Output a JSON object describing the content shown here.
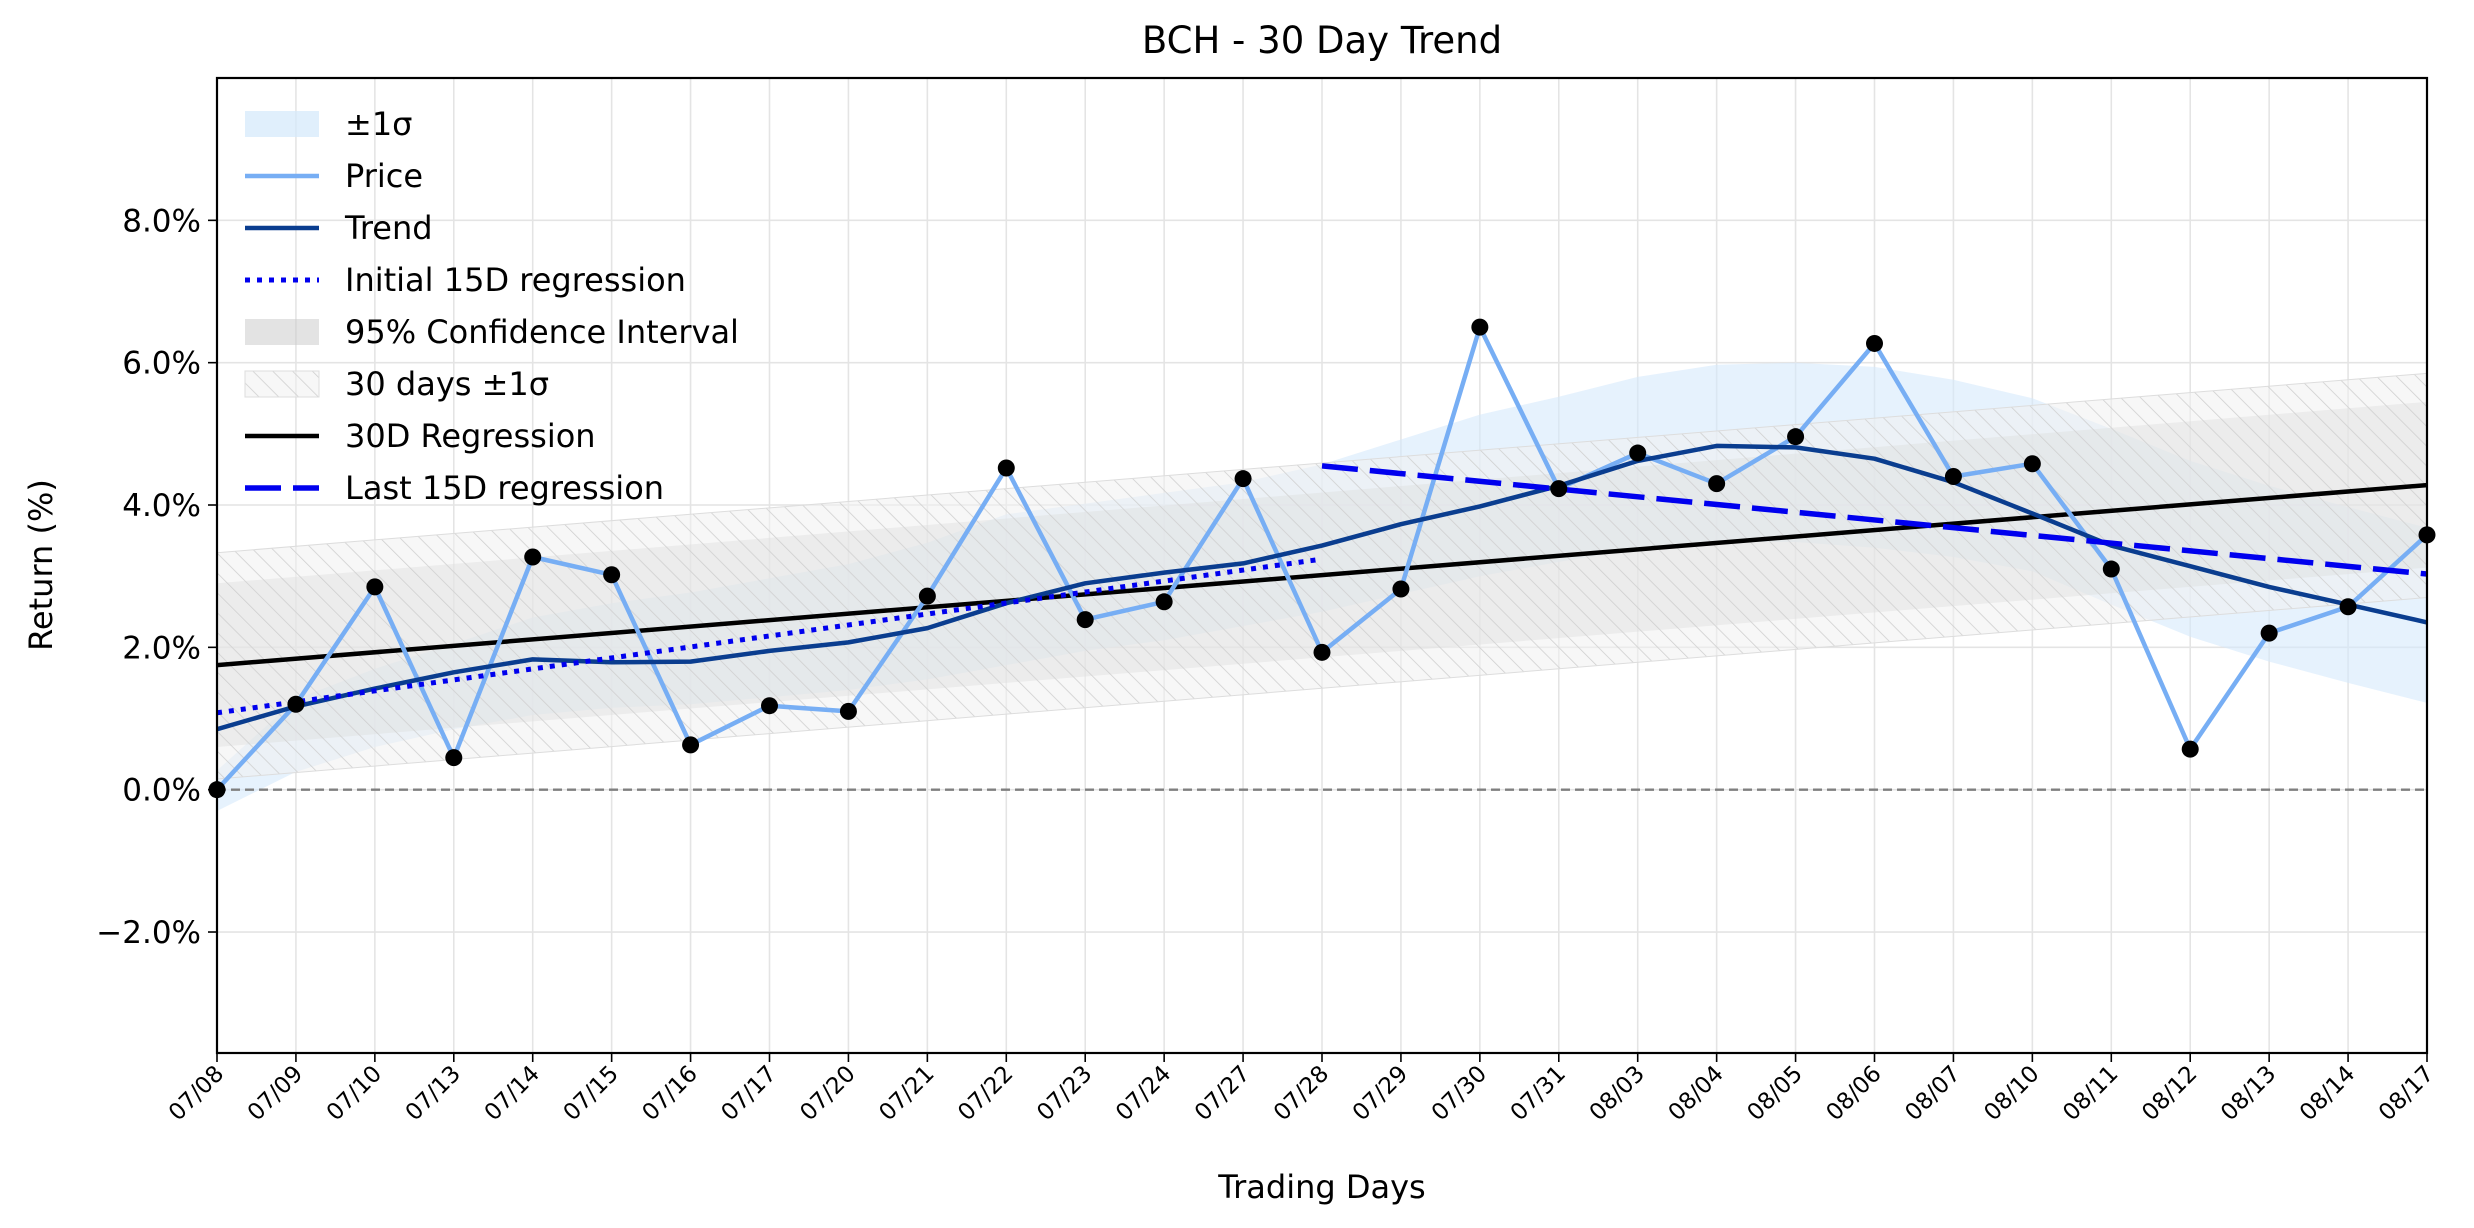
{
  "chart_data": {
    "type": "line",
    "title": "BCH - 30 Day Trend",
    "xlabel": "Trading Days",
    "ylabel": "Return (%)",
    "categories": [
      "07/08",
      "07/09",
      "07/10",
      "07/13",
      "07/14",
      "07/15",
      "07/16",
      "07/17",
      "07/20",
      "07/21",
      "07/22",
      "07/23",
      "07/24",
      "07/27",
      "07/28",
      "07/29",
      "07/30",
      "07/31",
      "08/03",
      "08/04",
      "08/05",
      "08/06",
      "08/07",
      "08/10",
      "08/11",
      "08/12",
      "08/13",
      "08/14",
      "08/17"
    ],
    "ylim": [
      -3.7,
      10.0
    ],
    "yticks": [
      -2.0,
      0.0,
      2.0,
      4.0,
      6.0,
      8.0
    ],
    "ytick_labels": [
      "−2.0%",
      "0.0%",
      "2.0%",
      "4.0%",
      "6.0%",
      "8.0%"
    ],
    "grid": true,
    "legend_position": "top-left",
    "legend": [
      {
        "label": "±1σ",
        "kind": "band-blue"
      },
      {
        "label": "Price",
        "kind": "line-price"
      },
      {
        "label": "Trend",
        "kind": "line-trend"
      },
      {
        "label": "Initial 15D regression",
        "kind": "line-dotted"
      },
      {
        "label": "95% Confidence Interval",
        "kind": "band-gray"
      },
      {
        "label": "30 days ±1σ",
        "kind": "band-hatch"
      },
      {
        "label": "30D Regression",
        "kind": "line-black"
      },
      {
        "label": "Last 15D regression",
        "kind": "line-dashed"
      }
    ],
    "series": [
      {
        "name": "Price",
        "color": "#77aef4",
        "values": [
          0.0,
          1.2,
          2.85,
          0.45,
          3.27,
          3.02,
          0.63,
          1.18,
          1.1,
          2.72,
          4.52,
          2.39,
          2.64,
          4.37,
          1.93,
          2.82,
          6.5,
          4.23,
          4.73,
          4.3,
          4.96,
          6.27,
          4.4,
          4.58,
          3.1,
          0.57,
          2.2,
          2.57,
          3.58
        ]
      },
      {
        "name": "Trend",
        "color": "#0a3d8f",
        "values": [
          0.85,
          1.17,
          1.42,
          1.65,
          1.83,
          1.79,
          1.8,
          1.95,
          2.07,
          2.27,
          2.62,
          2.9,
          3.05,
          3.18,
          3.43,
          3.73,
          3.98,
          4.27,
          4.62,
          4.83,
          4.81,
          4.65,
          4.32,
          3.88,
          3.43,
          3.14,
          2.85,
          2.6,
          2.35
        ]
      },
      {
        "name": "30D Regression",
        "color": "#000000",
        "x_range": [
          0,
          28
        ],
        "y_range": [
          1.75,
          4.28
        ]
      },
      {
        "name": "Initial 15D regression",
        "color": "#0000ee",
        "x_range": [
          0,
          14
        ],
        "y_range": [
          1.08,
          3.24
        ]
      },
      {
        "name": "Last 15D regression",
        "color": "#0000ee",
        "x_range": [
          14,
          28
        ],
        "y_range": [
          4.55,
          3.03
        ]
      }
    ],
    "bands": {
      "sigma_1": {
        "color": "#d6e9fb",
        "upper": [
          0.27,
          1.27,
          1.7,
          2.05,
          2.42,
          2.62,
          2.77,
          2.97,
          3.17,
          3.47,
          3.87,
          4.02,
          4.17,
          4.32,
          4.57,
          4.92,
          5.27,
          5.52,
          5.8,
          5.97,
          6.0,
          5.94,
          5.76,
          5.5,
          5.07,
          4.62,
          4.27,
          3.97,
          3.68
        ],
        "lower": [
          -0.3,
          0.25,
          0.6,
          0.85,
          1.05,
          1.15,
          1.2,
          1.3,
          1.4,
          1.55,
          1.75,
          1.95,
          2.1,
          2.3,
          2.5,
          2.75,
          3.0,
          3.2,
          3.38,
          3.48,
          3.48,
          3.4,
          3.27,
          3.07,
          2.6,
          2.15,
          1.8,
          1.5,
          1.22
        ]
      },
      "confidence_95": {
        "color": "#c8c8c8",
        "upper": [
          2.9,
          5.45
        ],
        "lower": [
          0.6,
          3.12
        ]
      },
      "sigma_30d": {
        "color": "#e0e0e0",
        "upper": [
          3.33,
          5.85
        ],
        "lower": [
          0.15,
          2.7
        ]
      }
    },
    "reference_line": {
      "y": 0.0,
      "style": "dashed",
      "color": "#7f7f7f"
    }
  }
}
